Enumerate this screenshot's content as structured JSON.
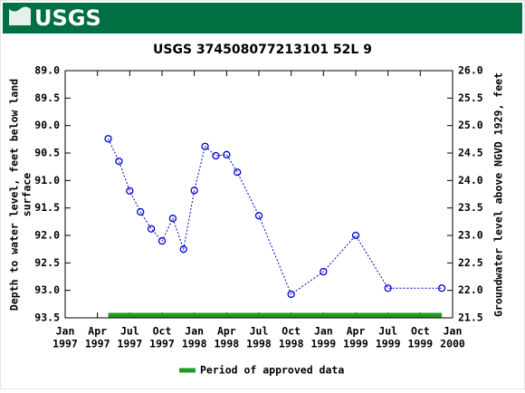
{
  "header": {
    "logo": "USGS"
  },
  "chart_data": {
    "type": "line",
    "title": "USGS 374508077213101 52L  9",
    "y_label": [
      "Depth to water level, feet below land",
      "surface"
    ],
    "y2_label": "Groundwater level above NGVD 1929, feet",
    "x": [
      "1997-05",
      "1997-06",
      "1997-07",
      "1997-08",
      "1997-09",
      "1997-10",
      "1997-11",
      "1997-12",
      "1998-01",
      "1998-02",
      "1998-03",
      "1998-04",
      "1998-05",
      "1998-07",
      "1998-10",
      "1999-01",
      "1999-04",
      "1999-07",
      "1999-12"
    ],
    "series": [
      {
        "color": "#0000cc",
        "values": [
          90.24,
          90.65,
          91.19,
          91.57,
          91.88,
          92.1,
          91.69,
          92.25,
          91.18,
          90.38,
          90.55,
          90.53,
          90.85,
          91.64,
          93.07,
          92.66,
          92.0,
          92.96,
          92.96
        ]
      }
    ],
    "xlim": [
      "1997-01",
      "2000-01"
    ],
    "xticks": [
      {
        "value": "1997-01",
        "label": [
          "Jan",
          "1997"
        ]
      },
      {
        "value": "1997-04",
        "label": [
          "Apr",
          "1997"
        ]
      },
      {
        "value": "1997-07",
        "label": [
          "Jul",
          "1997"
        ]
      },
      {
        "value": "1997-10",
        "label": [
          "Oct",
          "1997"
        ]
      },
      {
        "value": "1998-01",
        "label": [
          "Jan",
          "1998"
        ]
      },
      {
        "value": "1998-04",
        "label": [
          "Apr",
          "1998"
        ]
      },
      {
        "value": "1998-07",
        "label": [
          "Jul",
          "1998"
        ]
      },
      {
        "value": "1998-10",
        "label": [
          "Oct",
          "1998"
        ]
      },
      {
        "value": "1999-01",
        "label": [
          "Jan",
          "1999"
        ]
      },
      {
        "value": "1999-04",
        "label": [
          "Apr",
          "1999"
        ]
      },
      {
        "value": "1999-07",
        "label": [
          "Jul",
          "1999"
        ]
      },
      {
        "value": "1999-10",
        "label": [
          "Oct",
          "1999"
        ]
      },
      {
        "value": "2000-01",
        "label": [
          "Jan",
          "2000"
        ]
      }
    ],
    "ylim": [
      89,
      93.5
    ],
    "yticks": [
      {
        "value": 89,
        "label": "89.0"
      },
      89.5,
      {
        "value": 90,
        "label": "90.0"
      },
      90.5,
      {
        "value": 91,
        "label": "91.0"
      },
      91.5,
      {
        "value": 92,
        "label": "92.0"
      },
      92.5,
      {
        "value": 93,
        "label": "93.0"
      },
      93.5
    ],
    "y2lim": [
      26,
      21.5
    ],
    "y2ticks": [
      {
        "value": 26,
        "label": "26.0"
      },
      25.5,
      {
        "value": 25,
        "label": "25.0"
      },
      24.5,
      {
        "value": 24,
        "label": "24.0"
      },
      23.5,
      {
        "value": 23,
        "label": "23.0"
      },
      22.5,
      {
        "value": 22,
        "label": "22.0"
      },
      21.5
    ],
    "approved_period": {
      "label": "Period of approved data",
      "color": "#229922",
      "start": "1997-05",
      "end": "1999-12"
    }
  }
}
